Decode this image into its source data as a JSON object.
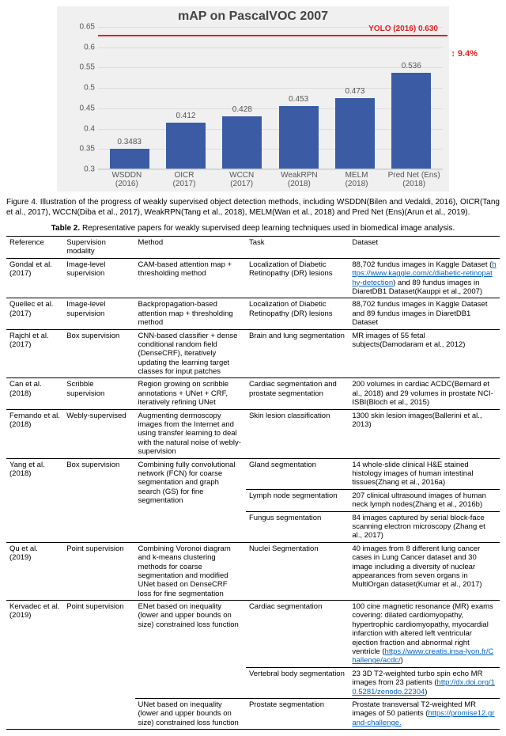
{
  "chart": {
    "title": "mAP on PascalVOC 2007",
    "title_fontsize": 16,
    "background_color": "#f0f0f0",
    "grid_color": "#dddddd",
    "bar_color": "#3b5ba5",
    "text_color": "#555555",
    "ylim": [
      0.3,
      0.65
    ],
    "yticks": [
      0.3,
      0.35,
      0.4,
      0.45,
      0.5,
      0.55,
      0.6,
      0.65
    ],
    "bar_width": 0.7,
    "categories": [
      "WSDDN\n(2016)",
      "OICR\n(2017)",
      "WCCN\n(2017)",
      "WeakRPN\n(2018)",
      "MELM\n(2018)",
      "Pred Net (Ens)\n(2018)"
    ],
    "values": [
      0.3483,
      0.412,
      0.428,
      0.453,
      0.473,
      0.536
    ],
    "ref_line": {
      "value": 0.63,
      "color": "#e02020",
      "label": "YOLO (2016)  0.630"
    },
    "delta_label": "9.4%"
  },
  "fig_caption": "Figure 4. Illustration of the progress of weakly supervised object detection methods, including WSDDN(Bilen and Vedaldi, 2016), OICR(Tang et al., 2017), WCCN(Diba et al., 2017), WeakRPN(Tang et al., 2018), MELM(Wan et al., 2018) and Pred Net (Ens)(Arun et al., 2019).",
  "table_title": "Table 2. Representative papers for weakly supervised deep learning techniques used in biomedical image analysis.",
  "table": {
    "columns": [
      "Reference",
      "Supervision modality",
      "Method",
      "Task",
      "Dataset"
    ],
    "rows": [
      {
        "ref": "Gondal et al. (2017)",
        "sup": "Image-level supervision",
        "method": "CAM-based attention map + thresholding method",
        "task": "Localization of Diabetic Retinopathy (DR) lesions",
        "dataset": "88,702 fundus images in Kaggle Dataset (<a href='#'>https://www.kaggle.com/c/diabetic-retinopathy-detection</a>) and 89 fundus images in DiaretDB1 Dataset(Kauppi et al., 2007)"
      },
      {
        "ref": "Quellec et al. (2017)",
        "sup": "Image-level supervision",
        "method": "Backpropagation-based attention map + thresholding method",
        "task": "Localization of Diabetic Retinopathy (DR) lesions",
        "dataset": "88,702 fundus images in Kaggle Dataset and 89 fundus images in DiaretDB1 Dataset"
      },
      {
        "ref": "Rajchl et al. (2017)",
        "sup": "Box supervision",
        "method": "CNN-based classifier + dense conditional random field (DenseCRF), iteratively updating the learning target classes for input patches",
        "task": "Brain and lung segmentation",
        "dataset": "MR images of 55 fetal subjects(Damodaram et al., 2012)"
      },
      {
        "ref": "Can et al. (2018)",
        "sup": "Scribble supervision",
        "method": "Region growing on scribble annotations + UNet + CRF, iteratively refining UNet",
        "task": "Cardiac segmentation and prostate segmentation",
        "dataset": "200 volumes in cardiac ACDC(Bernard et al., 2018) and 29 volumes in prostate NCI-ISBI(Bloch et al., 2015)"
      },
      {
        "ref": "Fernando et al. (2018)",
        "sup": "Webly-supervised",
        "method": "Augmenting dermoscopy images from the Internet and using transfer learning to deal with the natural noise of webly-supervision",
        "task": "Skin lesion classification",
        "dataset": "1300 skin lesion images(Ballerini et al., 2013)"
      },
      {
        "ref": "Yang et al. (2018)",
        "sup": "Box supervision",
        "rowspan": 3,
        "method": "Combining fully convolutional network (FCN) for coarse segmentation and graph search (GS) for fine segmentation",
        "task": "Gland segmentation",
        "dataset": "14 whole-slide clinical H&E stained histology images of human intestinal tissues(Zhang et al., 2016a)"
      },
      {
        "task": "Lymph node segmentation",
        "dataset": "207 clinical ultrasound images of human neck lymph nodes(Zhang et al., 2016b)"
      },
      {
        "task": "Fungus segmentation",
        "dataset": "84 images captured by serial block-face scanning electron microscopy (Zhang et al., 2017)"
      },
      {
        "ref": "Qu et al. (2019)",
        "sup": "Point supervision",
        "method": "Combining Voronoi diagram and k-means clustering methods for coarse segmentation and modified UNet based on DenseCRF loss for fine segmentation",
        "task": "Nuclei Segmentation",
        "dataset": "40 images from 8 different lung cancer cases in Lung Cancer dataset and 30 image including a diversity of nuclear appearances from seven organs in MultiOrgan dataset(Kumar et al., 2017)"
      },
      {
        "ref": "Kervadec et al. (2019)",
        "sup": "Point supervision",
        "rowspan": 3,
        "method": "ENet based on inequality (lower and upper bounds on size) constrained loss function",
        "task": "Cardiac segmentation",
        "dataset": "100 cine magnetic resonance (MR) exams covering: dilated cardiomyopathy, hypertrophic cardiomyopathy, myocardial infarction with altered left ventricular ejection fraction and abnormal right ventricle (<a href='#'>https://www.creatis.insa-lyon.fr/Challenge/acdc/</a>)"
      },
      {
        "method": "",
        "task": "Vertebral body segmentation",
        "dataset": "23 3D T2-weighted turbo spin echo MR images from 23 patients (<a href='#'>http://dx.doi.org/10.5281/zenodo.22304</a>)"
      },
      {
        "method": "UNet based on inequality (lower and upper bounds on size) constrained loss function",
        "task": "Prostate segmentation",
        "dataset": "Prostate transversal T2-weighted MR images of 50 patients (<a href='#'>https://promise12.grand-challenge.</a>"
      }
    ]
  }
}
